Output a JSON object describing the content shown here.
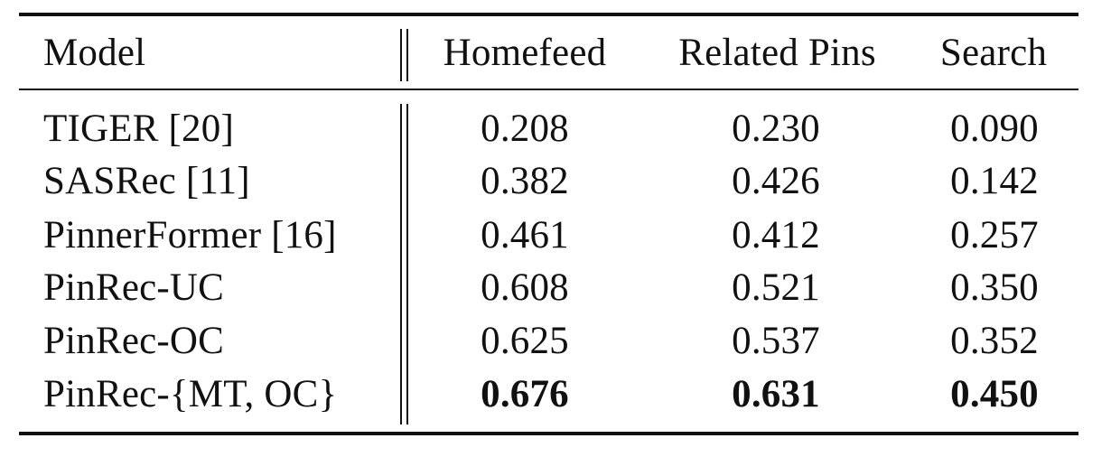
{
  "table": {
    "headers": {
      "model": "Model",
      "homefeed": "Homefeed",
      "related": "Related Pins",
      "search": "Search"
    },
    "rows": [
      {
        "model": "TIGER [20]",
        "homefeed": "0.208",
        "related": "0.230",
        "search": "0.090"
      },
      {
        "model": "SASRec [11]",
        "homefeed": "0.382",
        "related": "0.426",
        "search": "0.142"
      },
      {
        "model": "PinnerFormer [16]",
        "homefeed": "0.461",
        "related": "0.412",
        "search": "0.257"
      },
      {
        "model": "PinRec-UC",
        "homefeed": "0.608",
        "related": "0.521",
        "search": "0.350"
      },
      {
        "model": "PinRec-OC",
        "homefeed": "0.625",
        "related": "0.537",
        "search": "0.352"
      },
      {
        "model": "PinRec-{MT, OC}",
        "homefeed": "0.676",
        "related": "0.631",
        "search": "0.450",
        "bold_values": true
      }
    ]
  }
}
